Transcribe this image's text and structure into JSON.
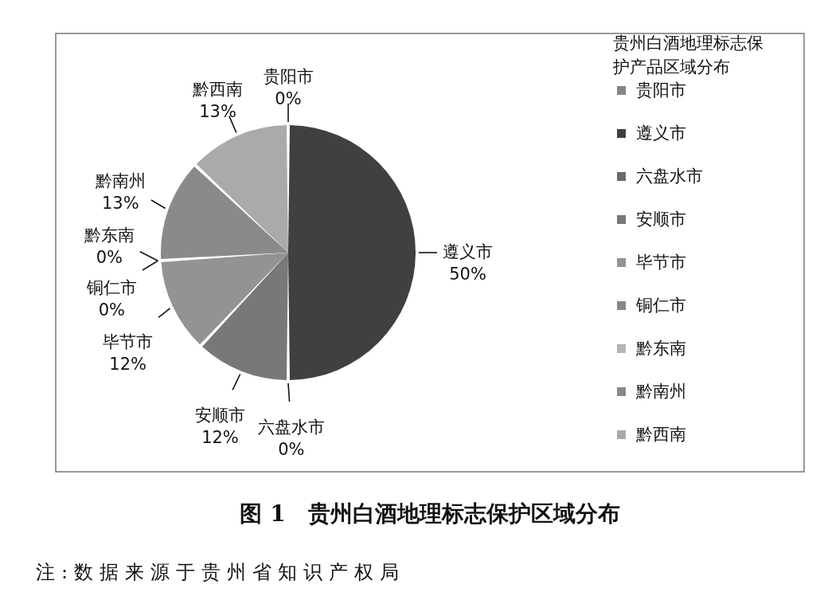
{
  "chart_data": {
    "type": "pie",
    "title": "图 1　贵州白酒地理标志保护区域分布",
    "categories": [
      "贵阳市",
      "遵义市",
      "六盘水市",
      "安顺市",
      "毕节市",
      "铜仁市",
      "黔东南",
      "黔南州",
      "黔西南"
    ],
    "values": [
      0,
      50,
      0,
      12,
      12,
      0,
      0,
      13,
      13
    ],
    "value_labels": [
      "0%",
      "50%",
      "0%",
      "12%",
      "12%",
      "0%",
      "0%",
      "13%",
      "13%"
    ],
    "colors": [
      "#858585",
      "#404040",
      "#6a6a6a",
      "#787878",
      "#939393",
      "#888888",
      "#b5b5b5",
      "#8a8a8a",
      "#aaaaaa"
    ],
    "legend_title": "贵州白酒地理标志保护产品区域分布",
    "legend": "right",
    "annotations": [
      "注:数据来源于贵州省知识产权局"
    ]
  }
}
